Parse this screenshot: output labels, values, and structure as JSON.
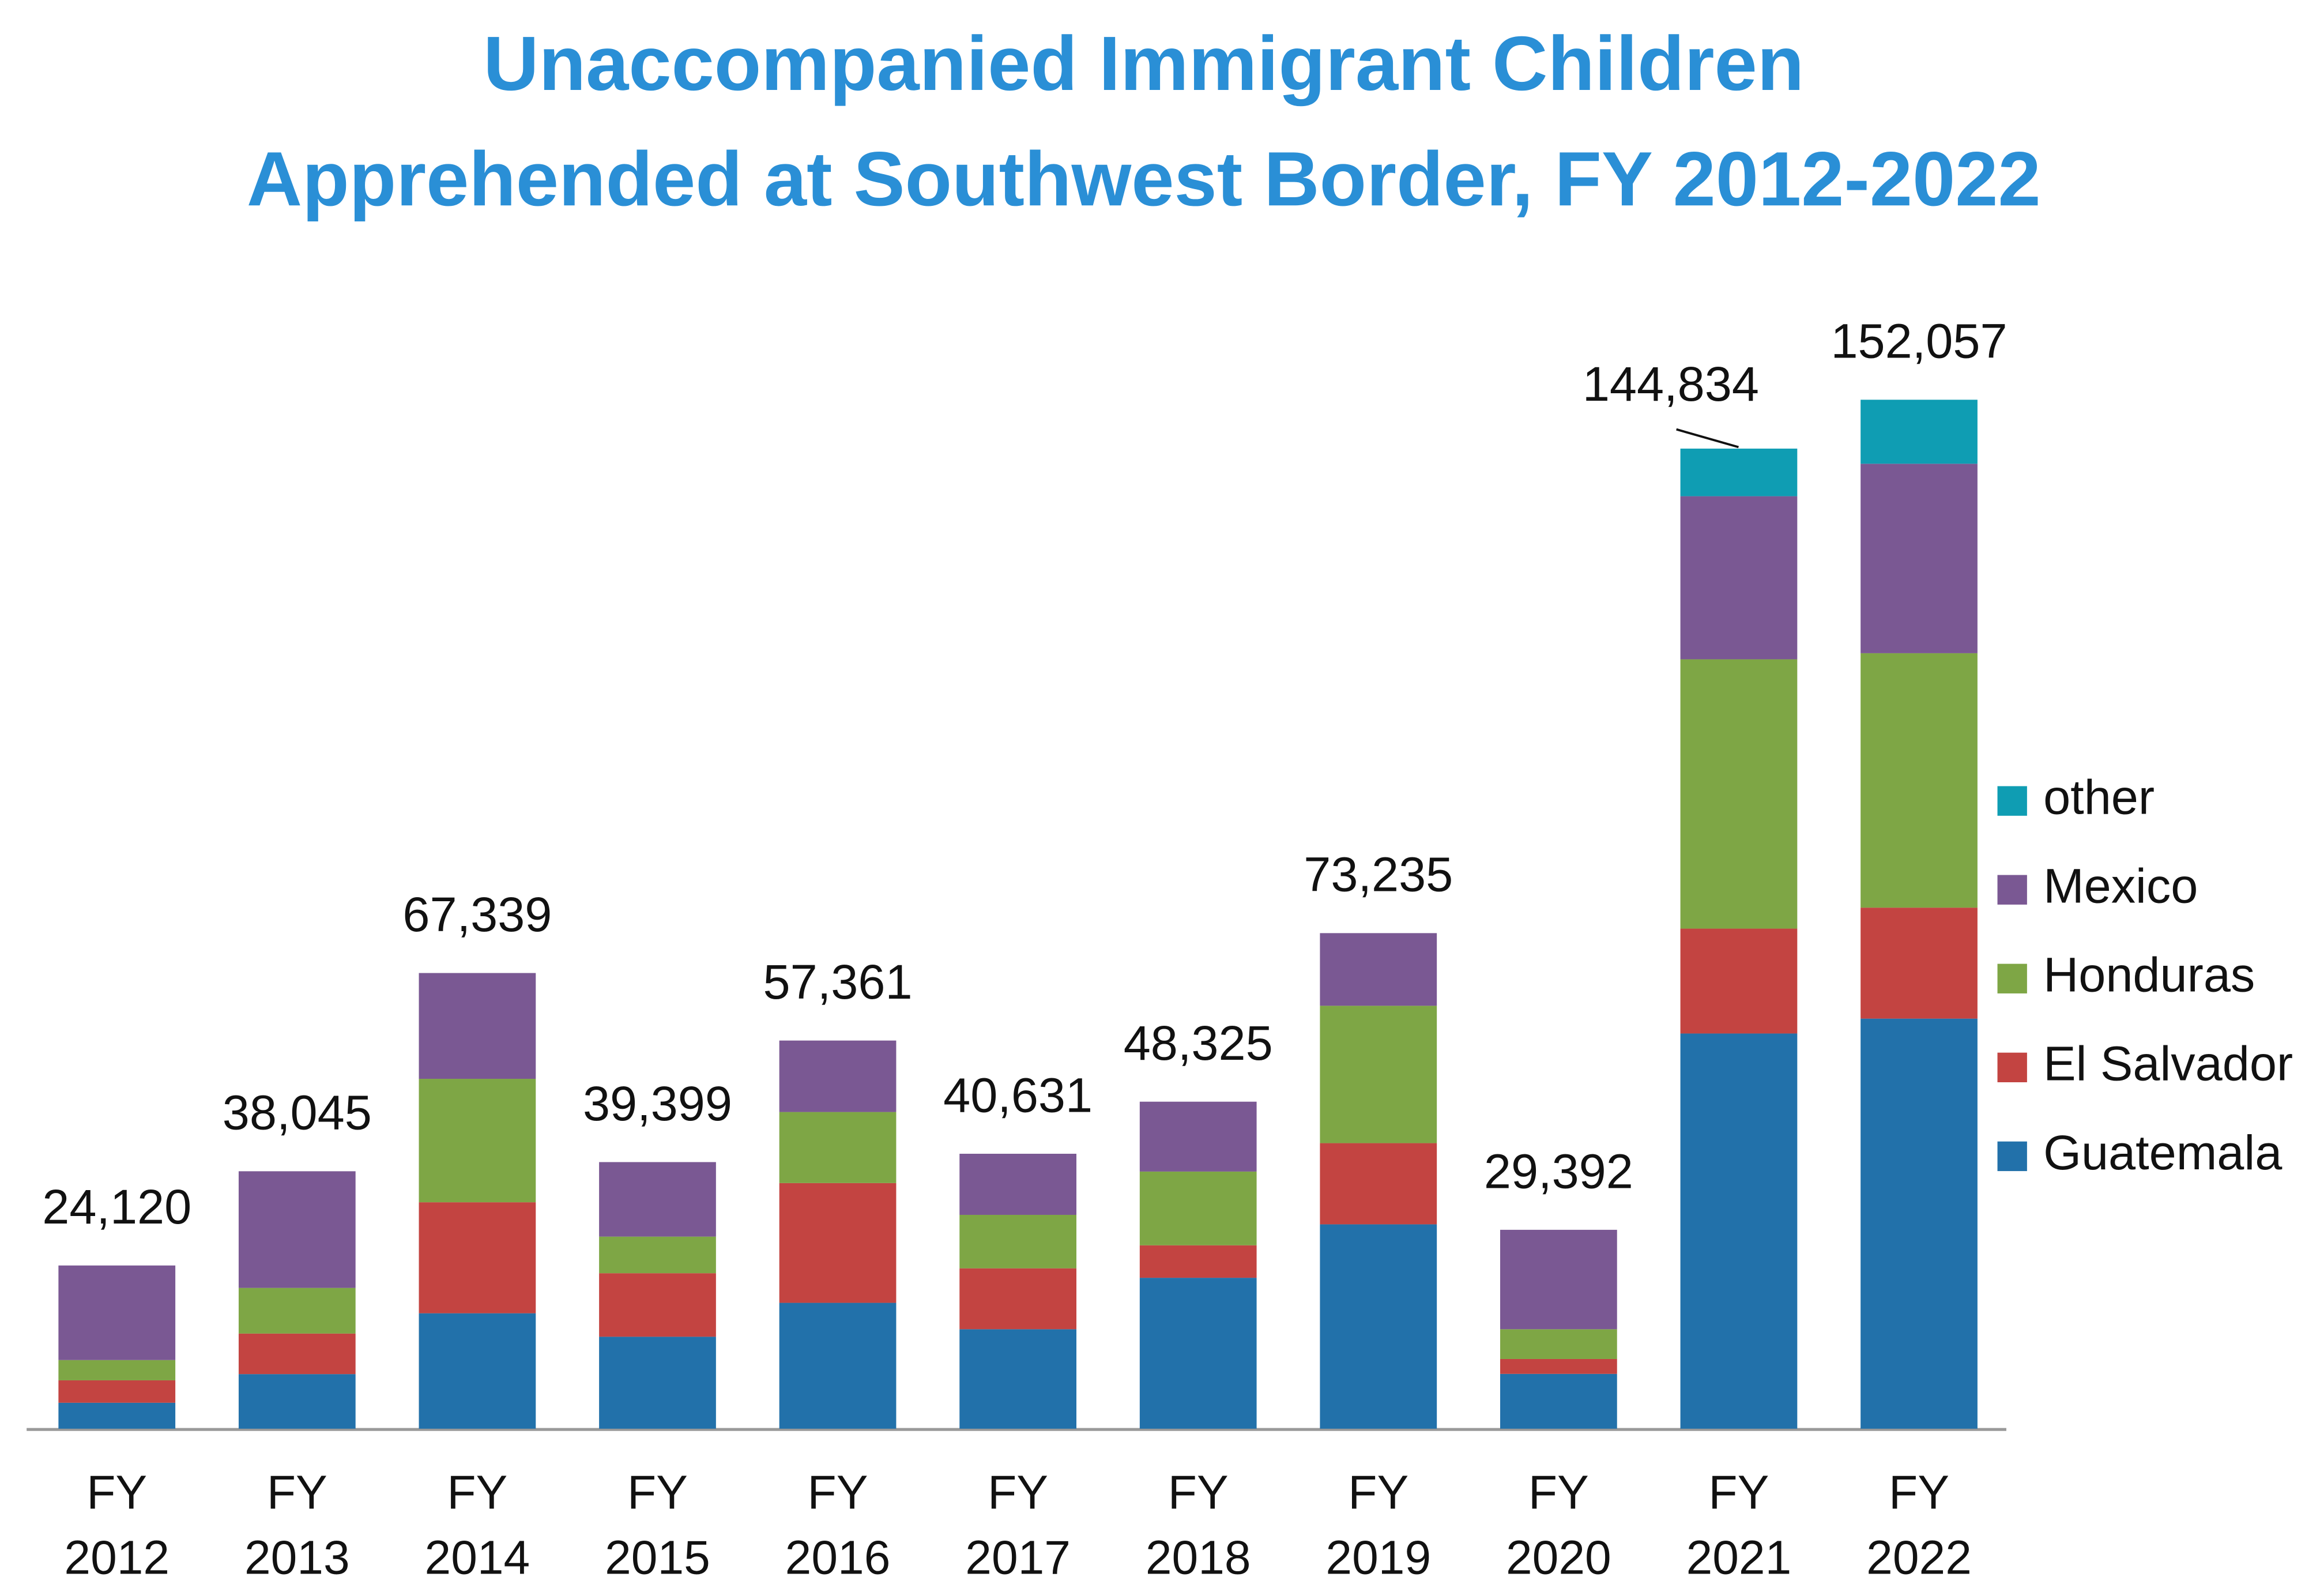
{
  "chart_data": {
    "type": "stacked_bar",
    "title": "Unaccompanied Immigrant Children",
    "subtitle": "Apprehended at Southwest Border, FY 2012-2022",
    "categories": [
      "FY 2012",
      "FY 2013",
      "FY 2014",
      "FY 2015",
      "FY 2016",
      "FY 2017",
      "FY 2018",
      "FY 2019",
      "FY 2020",
      "FY 2021",
      "FY 2022"
    ],
    "series": [
      {
        "name": "Guatemala",
        "color": "#2271aa",
        "values": [
          3835,
          8068,
          17057,
          13589,
          18600,
          14700,
          22300,
          30200,
          8100,
          58400,
          60600
        ]
      },
      {
        "name": "El Salvador",
        "color": "#c34441",
        "values": [
          3314,
          5990,
          16404,
          9389,
          17700,
          9000,
          4800,
          12000,
          2200,
          15500,
          16400
        ]
      },
      {
        "name": "Honduras",
        "color": "#7ea645",
        "values": [
          2997,
          6747,
          18244,
          5409,
          10500,
          7900,
          10900,
          20300,
          4400,
          39800,
          37600
        ]
      },
      {
        "name": "Mexico",
        "color": "#7a5893",
        "values": [
          13974,
          17240,
          15634,
          11012,
          10561,
          9031,
          10325,
          10735,
          14692,
          24100,
          28000
        ]
      },
      {
        "name": "other",
        "color": "#0f9db3",
        "values": [
          null,
          null,
          null,
          null,
          null,
          null,
          null,
          null,
          null,
          7034,
          9457
        ]
      }
    ],
    "totals": [
      24120,
      38045,
      67339,
      39399,
      57361,
      40631,
      48325,
      73235,
      29392,
      144834,
      152057
    ],
    "total_labels": [
      "24,120",
      "38,045",
      "67,339",
      "39,399",
      "57,361",
      "40,631",
      "48,325",
      "73,235",
      "29,392",
      "144,834",
      "152,057"
    ],
    "legend": "right"
  }
}
